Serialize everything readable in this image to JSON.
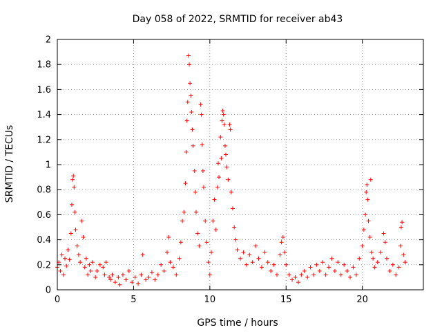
{
  "chart_data": {
    "type": "scatter",
    "title": "Day 058 of 2022, SRMTID for receiver ab43",
    "xlabel": "GPS time / hours",
    "ylabel": "SRMTID / TECUs",
    "xlim": [
      0,
      24
    ],
    "ylim": [
      0,
      2
    ],
    "xticks": [
      0,
      5,
      10,
      15,
      20
    ],
    "xtick_labels": [
      "0",
      "5",
      "10",
      "15",
      "20"
    ],
    "yticks": [
      0,
      0.2,
      0.4,
      0.6,
      0.8,
      1,
      1.2,
      1.4,
      1.6,
      1.8,
      2
    ],
    "ytick_labels": [
      "0",
      "0.2",
      "0.4",
      "0.6",
      "0.8",
      "1",
      "1.2",
      "1.4",
      "1.6",
      "1.8",
      "2"
    ],
    "grid": true,
    "marker": "+",
    "color": "#ff0000",
    "series": [
      {
        "name": "SRMTID",
        "points": [
          [
            0.0,
            0.18
          ],
          [
            0.1,
            0.22
          ],
          [
            0.2,
            0.15
          ],
          [
            0.3,
            0.28
          ],
          [
            0.4,
            0.12
          ],
          [
            0.5,
            0.25
          ],
          [
            0.6,
            0.19
          ],
          [
            0.7,
            0.32
          ],
          [
            0.8,
            0.24
          ],
          [
            0.9,
            0.45
          ],
          [
            0.95,
            0.68
          ],
          [
            1.0,
            0.88
          ],
          [
            1.05,
            0.91
          ],
          [
            1.1,
            0.82
          ],
          [
            1.15,
            0.62
          ],
          [
            1.2,
            0.48
          ],
          [
            1.3,
            0.35
          ],
          [
            1.4,
            0.28
          ],
          [
            1.5,
            0.22
          ],
          [
            1.6,
            0.55
          ],
          [
            1.7,
            0.42
          ],
          [
            1.8,
            0.18
          ],
          [
            1.9,
            0.25
          ],
          [
            2.0,
            0.12
          ],
          [
            2.1,
            0.2
          ],
          [
            2.2,
            0.15
          ],
          [
            2.3,
            0.22
          ],
          [
            2.5,
            0.1
          ],
          [
            2.6,
            0.15
          ],
          [
            2.8,
            0.2
          ],
          [
            3.0,
            0.18
          ],
          [
            3.1,
            0.12
          ],
          [
            3.2,
            0.22
          ],
          [
            3.4,
            0.1
          ],
          [
            3.5,
            0.08
          ],
          [
            3.6,
            0.12
          ],
          [
            3.8,
            0.06
          ],
          [
            4.0,
            0.1
          ],
          [
            4.1,
            0.04
          ],
          [
            4.3,
            0.12
          ],
          [
            4.5,
            0.08
          ],
          [
            4.7,
            0.15
          ],
          [
            4.9,
            0.06
          ],
          [
            5.1,
            0.1
          ],
          [
            5.3,
            0.05
          ],
          [
            5.5,
            0.12
          ],
          [
            5.6,
            0.28
          ],
          [
            5.8,
            0.08
          ],
          [
            6.0,
            0.1
          ],
          [
            6.2,
            0.14
          ],
          [
            6.4,
            0.08
          ],
          [
            6.6,
            0.12
          ],
          [
            6.8,
            0.2
          ],
          [
            7.0,
            0.15
          ],
          [
            7.2,
            0.3
          ],
          [
            7.3,
            0.42
          ],
          [
            7.4,
            0.22
          ],
          [
            7.6,
            0.18
          ],
          [
            7.8,
            0.12
          ],
          [
            8.0,
            0.25
          ],
          [
            8.1,
            0.38
          ],
          [
            8.2,
            0.55
          ],
          [
            8.3,
            0.62
          ],
          [
            8.4,
            0.85
          ],
          [
            8.45,
            1.1
          ],
          [
            8.5,
            1.35
          ],
          [
            8.55,
            1.5
          ],
          [
            8.6,
            1.87
          ],
          [
            8.65,
            1.8
          ],
          [
            8.7,
            1.65
          ],
          [
            8.75,
            1.55
          ],
          [
            8.8,
            1.42
          ],
          [
            8.85,
            1.28
          ],
          [
            8.9,
            1.15
          ],
          [
            9.0,
            0.95
          ],
          [
            9.05,
            0.78
          ],
          [
            9.1,
            0.62
          ],
          [
            9.2,
            0.45
          ],
          [
            9.3,
            0.35
          ],
          [
            9.4,
            1.48
          ],
          [
            9.45,
            1.4
          ],
          [
            9.5,
            1.16
          ],
          [
            9.55,
            0.95
          ],
          [
            9.6,
            0.82
          ],
          [
            9.7,
            0.55
          ],
          [
            9.8,
            0.38
          ],
          [
            9.9,
            0.22
          ],
          [
            10.0,
            0.12
          ],
          [
            10.1,
            0.3
          ],
          [
            10.2,
            0.55
          ],
          [
            10.3,
            0.72
          ],
          [
            10.4,
            0.48
          ],
          [
            10.5,
            0.82
          ],
          [
            10.55,
            1.01
          ],
          [
            10.6,
            0.9
          ],
          [
            10.7,
            1.22
          ],
          [
            10.75,
            1.05
          ],
          [
            10.8,
            1.35
          ],
          [
            10.85,
            1.43
          ],
          [
            10.9,
            1.4
          ],
          [
            10.95,
            1.32
          ],
          [
            11.0,
            1.15
          ],
          [
            11.05,
            1.08
          ],
          [
            11.1,
            0.98
          ],
          [
            11.2,
            0.88
          ],
          [
            11.3,
            1.32
          ],
          [
            11.35,
            1.28
          ],
          [
            11.4,
            0.78
          ],
          [
            11.5,
            0.65
          ],
          [
            11.6,
            0.5
          ],
          [
            11.7,
            0.4
          ],
          [
            11.8,
            0.32
          ],
          [
            12.0,
            0.25
          ],
          [
            12.2,
            0.3
          ],
          [
            12.4,
            0.2
          ],
          [
            12.6,
            0.28
          ],
          [
            12.8,
            0.22
          ],
          [
            13.0,
            0.35
          ],
          [
            13.2,
            0.25
          ],
          [
            13.4,
            0.18
          ],
          [
            13.6,
            0.3
          ],
          [
            13.8,
            0.22
          ],
          [
            14.0,
            0.15
          ],
          [
            14.2,
            0.2
          ],
          [
            14.4,
            0.12
          ],
          [
            14.6,
            0.28
          ],
          [
            14.7,
            0.38
          ],
          [
            14.8,
            0.42
          ],
          [
            14.9,
            0.3
          ],
          [
            15.0,
            0.2
          ],
          [
            15.2,
            0.12
          ],
          [
            15.4,
            0.08
          ],
          [
            15.6,
            0.1
          ],
          [
            15.8,
            0.06
          ],
          [
            16.0,
            0.12
          ],
          [
            16.2,
            0.15
          ],
          [
            16.4,
            0.1
          ],
          [
            16.6,
            0.18
          ],
          [
            16.8,
            0.12
          ],
          [
            17.0,
            0.2
          ],
          [
            17.2,
            0.15
          ],
          [
            17.4,
            0.22
          ],
          [
            17.6,
            0.12
          ],
          [
            17.8,
            0.18
          ],
          [
            18.0,
            0.25
          ],
          [
            18.2,
            0.15
          ],
          [
            18.4,
            0.22
          ],
          [
            18.6,
            0.12
          ],
          [
            18.8,
            0.2
          ],
          [
            19.0,
            0.15
          ],
          [
            19.2,
            0.1
          ],
          [
            19.4,
            0.18
          ],
          [
            19.6,
            0.12
          ],
          [
            19.8,
            0.25
          ],
          [
            20.0,
            0.35
          ],
          [
            20.1,
            0.48
          ],
          [
            20.2,
            0.6
          ],
          [
            20.25,
            0.78
          ],
          [
            20.3,
            0.84
          ],
          [
            20.35,
            0.72
          ],
          [
            20.4,
            0.55
          ],
          [
            20.5,
            0.42
          ],
          [
            20.55,
            0.88
          ],
          [
            20.6,
            0.3
          ],
          [
            20.7,
            0.25
          ],
          [
            20.8,
            0.18
          ],
          [
            21.0,
            0.22
          ],
          [
            21.2,
            0.3
          ],
          [
            21.4,
            0.45
          ],
          [
            21.5,
            0.38
          ],
          [
            21.6,
            0.25
          ],
          [
            21.8,
            0.15
          ],
          [
            22.0,
            0.2
          ],
          [
            22.2,
            0.12
          ],
          [
            22.4,
            0.18
          ],
          [
            22.5,
            0.35
          ],
          [
            22.55,
            0.5
          ],
          [
            22.6,
            0.54
          ],
          [
            22.7,
            0.28
          ],
          [
            22.8,
            0.22
          ]
        ]
      }
    ]
  }
}
